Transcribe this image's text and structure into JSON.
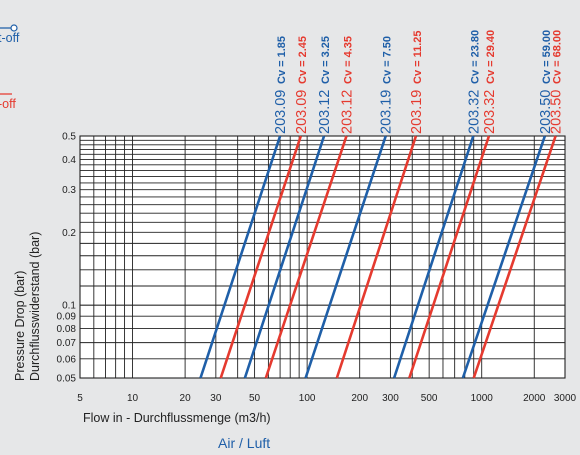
{
  "chart_data": {
    "type": "line",
    "title": "",
    "medium": "Air / Luft",
    "xlabel": "Flow in - Durchflussmenge (m3/h)",
    "ylabel_line1": "Pressure Drop (bar)",
    "ylabel_line2": "Durchflusswiderstand (bar)",
    "x_scale": "log",
    "y_scale": "log",
    "xlim": [
      5,
      3000
    ],
    "ylim": [
      0.05,
      0.5
    ],
    "x_ticks": [
      {
        "v": 5,
        "label": "5"
      },
      {
        "v": 10,
        "label": "10"
      },
      {
        "v": 20,
        "label": "20"
      },
      {
        "v": 30,
        "label": "30"
      },
      {
        "v": 50,
        "label": "50"
      },
      {
        "v": 100,
        "label": "100"
      },
      {
        "v": 200,
        "label": "200"
      },
      {
        "v": 300,
        "label": "300"
      },
      {
        "v": 500,
        "label": "500"
      },
      {
        "v": 1000,
        "label": "1000"
      },
      {
        "v": 2000,
        "label": "2000"
      },
      {
        "v": 3000,
        "label": "3000"
      }
    ],
    "y_ticks": [
      {
        "v": 0.05,
        "label": "0.05"
      },
      {
        "v": 0.06,
        "label": "0.06"
      },
      {
        "v": 0.07,
        "label": "0.07"
      },
      {
        "v": 0.08,
        "label": "0.08"
      },
      {
        "v": 0.09,
        "label": "0.09"
      },
      {
        "v": 0.1,
        "label": "0.1"
      },
      {
        "v": 0.2,
        "label": "0.2"
      },
      {
        "v": 0.3,
        "label": "0.3"
      },
      {
        "v": 0.4,
        "label": "0.4"
      },
      {
        "v": 0.5,
        "label": "0.5"
      }
    ],
    "grid": true,
    "legend": [
      {
        "label": "t-off",
        "color": "#1f5fa8",
        "marker": true
      },
      {
        "label": "-off",
        "color": "#e53a2f",
        "marker": false
      }
    ],
    "series": [
      {
        "model": "203.09",
        "cv": "Cv = 1.85",
        "color": "#1f5fa8",
        "x": [
          24.5,
          70
        ],
        "y": [
          0.05,
          0.5
        ]
      },
      {
        "model": "203.09",
        "cv": "Cv = 2.45",
        "color": "#e53a2f",
        "x": [
          32,
          92
        ],
        "y": [
          0.05,
          0.5
        ]
      },
      {
        "model": "203.12",
        "cv": "Cv = 3.25",
        "color": "#1f5fa8",
        "x": [
          44,
          125
        ],
        "y": [
          0.05,
          0.5
        ]
      },
      {
        "model": "203.12",
        "cv": "Cv = 4.35",
        "color": "#e53a2f",
        "x": [
          58,
          168
        ],
        "y": [
          0.05,
          0.5
        ]
      },
      {
        "model": "203.19",
        "cv": "Cv = 7.50",
        "color": "#1f5fa8",
        "x": [
          98,
          282
        ],
        "y": [
          0.05,
          0.5
        ]
      },
      {
        "model": "203.19",
        "cv": "Cv = 11.25",
        "color": "#e53a2f",
        "x": [
          148,
          420
        ],
        "y": [
          0.05,
          0.5
        ]
      },
      {
        "model": "203.32",
        "cv": "Cv = 23.80",
        "color": "#1f5fa8",
        "x": [
          315,
          895
        ],
        "y": [
          0.05,
          0.5
        ]
      },
      {
        "model": "203.32",
        "cv": "Cv = 29.40",
        "color": "#e53a2f",
        "x": [
          385,
          1100
        ],
        "y": [
          0.05,
          0.5
        ]
      },
      {
        "model": "203.50",
        "cv": "Cv = 59.00",
        "color": "#1f5fa8",
        "x": [
          780,
          2300
        ],
        "y": [
          0.05,
          0.5
        ]
      },
      {
        "model": "203.50",
        "cv": "Cv = 68.00",
        "color": "#e53a2f",
        "x": [
          900,
          2650
        ],
        "y": [
          0.05,
          0.5
        ]
      }
    ]
  }
}
